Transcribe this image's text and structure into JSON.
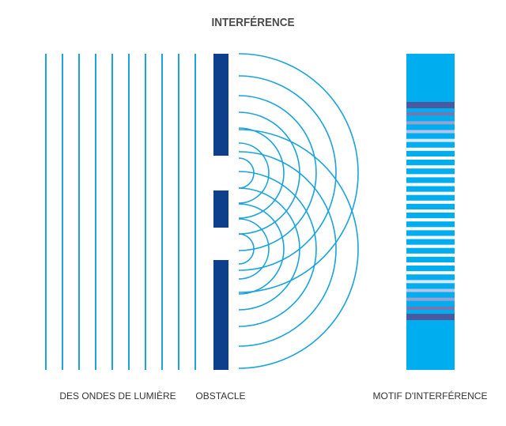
{
  "title": "INTERFÉRENCE",
  "labels": {
    "waves": "DES ONDES DE LUMIÈRE",
    "obstacle": "OBSTACLE",
    "pattern": "MOTIF D'INTERFÉRENCE"
  },
  "colors": {
    "wave": "#1aa3dc",
    "obstacle": "#0d3f8c",
    "pattern_bg": "#00aeef"
  },
  "plane_wave_count": 10,
  "slit_count": 2,
  "arcs_per_slit": 7,
  "pattern_stripes": [
    "#4b5a9e",
    "#7a74b0",
    "#9aa0cf",
    "#b9c2e6",
    "#d8e8f6",
    "#ffffff",
    "#ffffff",
    "#ffffff",
    "#ffffff",
    "#ffffff",
    "#ffffff",
    "#ffffff",
    "#ffffff",
    "#ffffff",
    "#ffffff",
    "#ffffff",
    "#ffffff",
    "#ffffff",
    "#ffffff",
    "#ffffff",
    "#d8e8f6",
    "#b9c2e6",
    "#9aa0cf",
    "#7a74b0",
    "#4b5a9e"
  ]
}
